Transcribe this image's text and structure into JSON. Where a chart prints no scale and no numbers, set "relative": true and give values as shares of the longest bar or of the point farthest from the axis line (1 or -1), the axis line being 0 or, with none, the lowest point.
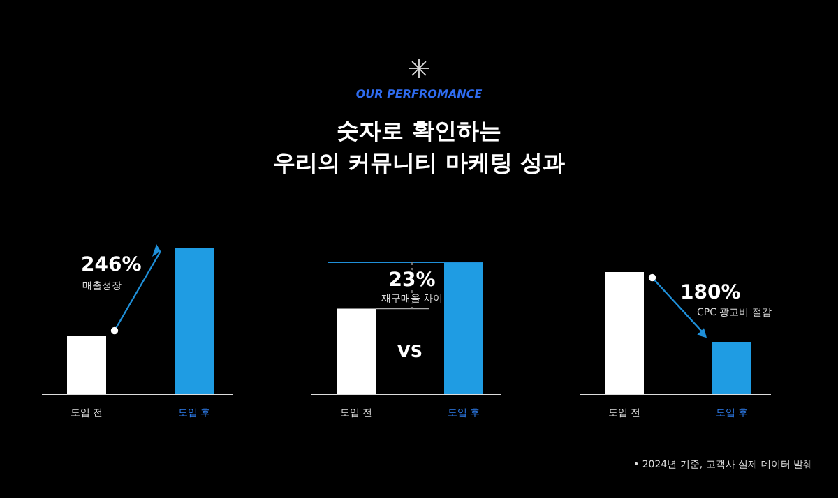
{
  "chart_data": [
    {
      "type": "bar",
      "relative": true,
      "categories": [
        "도입 전",
        "도입 후"
      ],
      "values": [
        0.4,
        1
      ],
      "colors": [
        "#ffffff",
        "#1f9ce3"
      ],
      "annotations": [
        "246%",
        "매출성장"
      ]
    },
    {
      "type": "bar",
      "title": "숫자로 확인하는\n우리의 커뮤니티 마케팅 성과",
      "subtitle": "OUR PERFROMANCE",
      "relative": true,
      "categories": [
        "도입 전",
        "도입 후"
      ],
      "values": [
        0.65,
        1
      ],
      "colors": [
        "#ffffff",
        "#1f9ce3"
      ],
      "annotations": [
        "23%",
        "재구매율 차이",
        "VS"
      ]
    },
    {
      "type": "bar",
      "relative": true,
      "categories": [
        "도입 전",
        "도입 후"
      ],
      "values": [
        1,
        0.43
      ],
      "colors": [
        "#ffffff",
        "#1f9ce3"
      ],
      "annotations": [
        "180%",
        "CPC 광고비 절감",
        "• 2024년 기준, 고객사 실제 데이터 발췌"
      ]
    }
  ]
}
